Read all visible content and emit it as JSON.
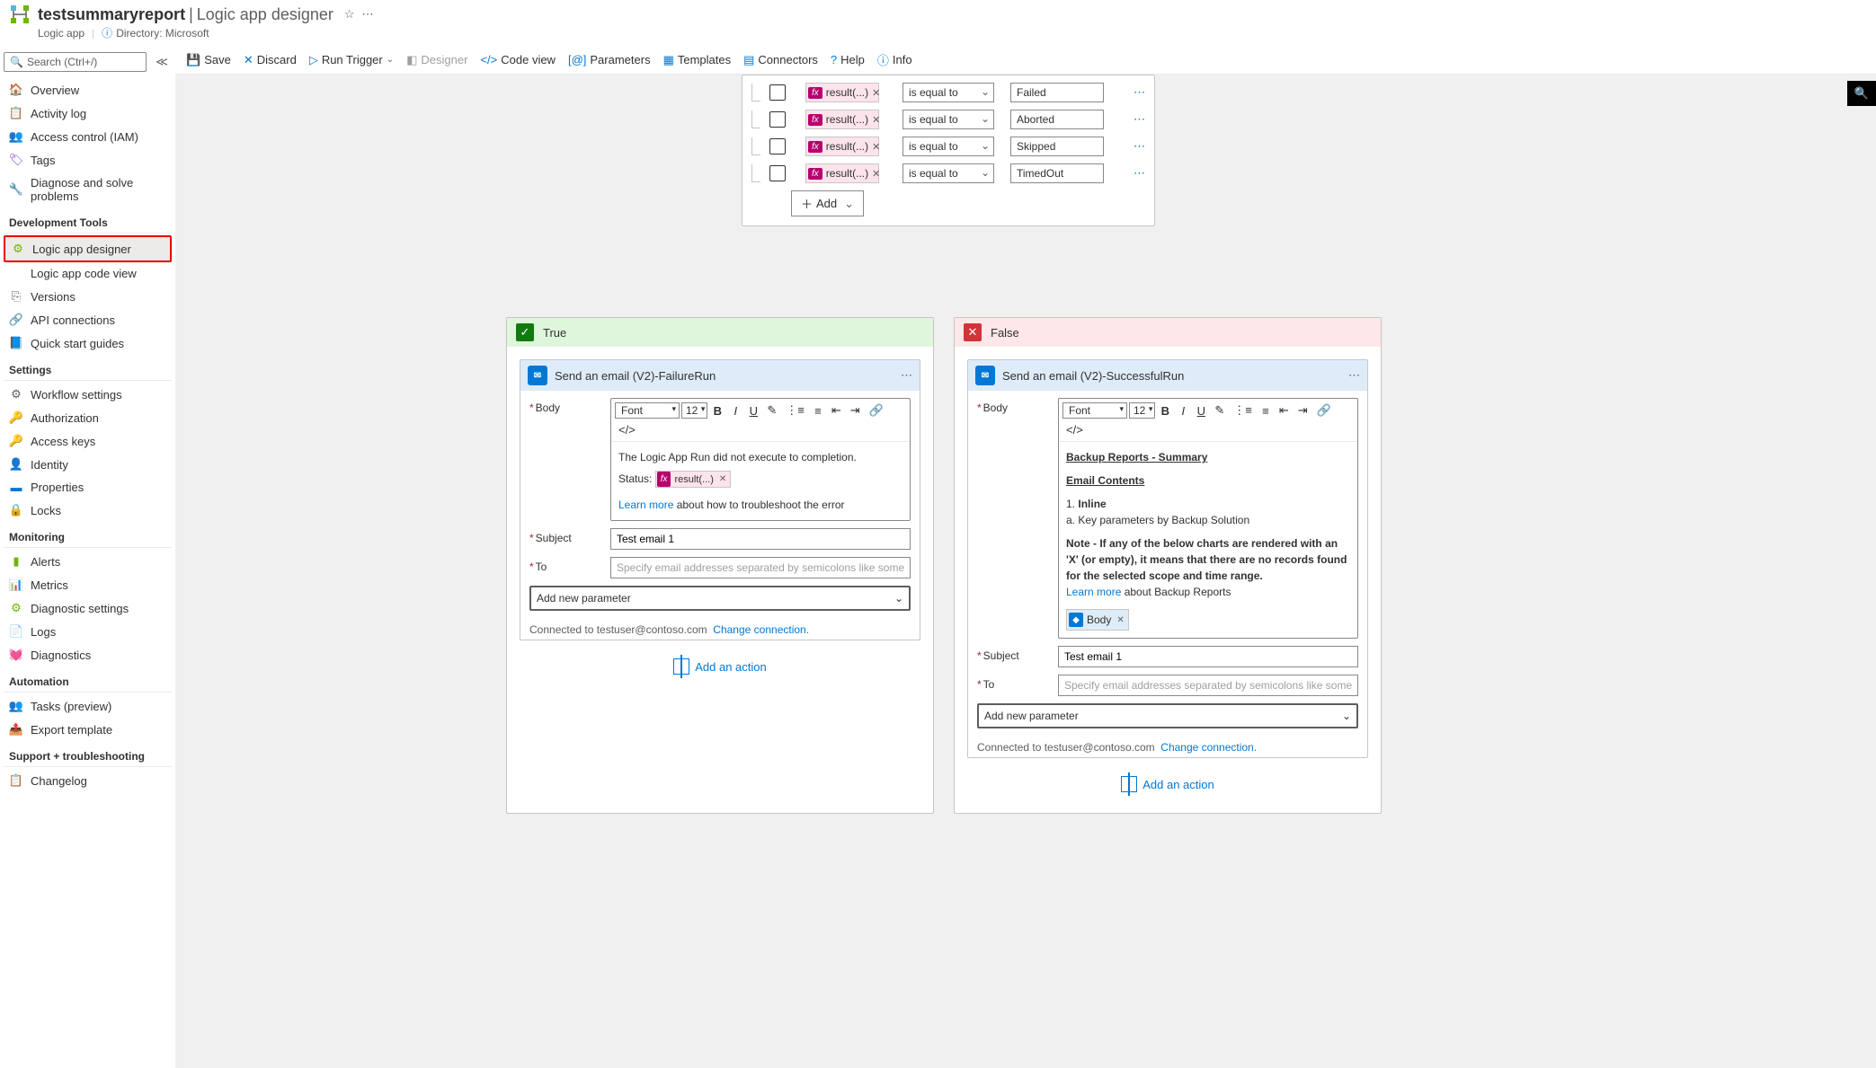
{
  "header": {
    "title": "testsummaryreport",
    "subtitle": "Logic app designer",
    "type": "Logic app",
    "directory_label": "Directory:",
    "directory": "Microsoft"
  },
  "sidebar": {
    "search_placeholder": "Search (Ctrl+/)",
    "items_top": [
      {
        "icon": "🏠",
        "color": "#6bb700",
        "label": "Overview"
      },
      {
        "icon": "📋",
        "color": "#605e5c",
        "label": "Activity log"
      },
      {
        "icon": "👥",
        "color": "#0078d4",
        "label": "Access control (IAM)"
      },
      {
        "icon": "🏷",
        "color": "#773adc",
        "label": "Tags"
      },
      {
        "icon": "🔧",
        "color": "#605e5c",
        "label": "Diagnose and solve problems"
      }
    ],
    "section_dev": "Development Tools",
    "items_dev": [
      {
        "icon": "⚙",
        "color": "#6bb700",
        "label": "Logic app designer",
        "selected": true
      },
      {
        "icon": "</>",
        "color": "#605e5c",
        "label": "Logic app code view"
      },
      {
        "icon": "⎘",
        "color": "#605e5c",
        "label": "Versions"
      },
      {
        "icon": "🔗",
        "color": "#6bb700",
        "label": "API connections"
      },
      {
        "icon": "📘",
        "color": "#0078d4",
        "label": "Quick start guides"
      }
    ],
    "section_settings": "Settings",
    "items_settings": [
      {
        "icon": "⚙",
        "color": "#605e5c",
        "label": "Workflow settings"
      },
      {
        "icon": "🔑",
        "color": "#ffb900",
        "label": "Authorization"
      },
      {
        "icon": "🔑",
        "color": "#0078d4",
        "label": "Access keys"
      },
      {
        "icon": "👤",
        "color": "#ffb900",
        "label": "Identity"
      },
      {
        "icon": "▬",
        "color": "#0078d4",
        "label": "Properties"
      },
      {
        "icon": "🔒",
        "color": "#605e5c",
        "label": "Locks"
      }
    ],
    "section_monitoring": "Monitoring",
    "items_monitoring": [
      {
        "icon": "▮",
        "color": "#6bb700",
        "label": "Alerts"
      },
      {
        "icon": "📊",
        "color": "#0078d4",
        "label": "Metrics"
      },
      {
        "icon": "⚙",
        "color": "#6bb700",
        "label": "Diagnostic settings"
      },
      {
        "icon": "📄",
        "color": "#0078d4",
        "label": "Logs"
      },
      {
        "icon": "💓",
        "color": "#d13438",
        "label": "Diagnostics"
      }
    ],
    "section_automation": "Automation",
    "items_automation": [
      {
        "icon": "👥",
        "color": "#6bb700",
        "label": "Tasks (preview)"
      },
      {
        "icon": "📤",
        "color": "#0078d4",
        "label": "Export template"
      }
    ],
    "section_support": "Support + troubleshooting",
    "items_support": [
      {
        "icon": "📋",
        "color": "#0078d4",
        "label": "Changelog"
      }
    ]
  },
  "toolbar": {
    "save": "Save",
    "discard": "Discard",
    "run": "Run Trigger",
    "designer": "Designer",
    "code": "Code view",
    "params": "Parameters",
    "templates": "Templates",
    "connectors": "Connectors",
    "help": "Help",
    "info": "Info"
  },
  "condition": {
    "token": "result(...)",
    "op": "is equal to",
    "values": [
      "Failed",
      "Aborted",
      "Skipped",
      "TimedOut"
    ],
    "add": "Add"
  },
  "true_branch": {
    "label": "True",
    "action_title": "Send an email (V2)-FailureRun",
    "body_label": "Body",
    "body_text": "The Logic App Run did not execute to completion.",
    "status_label": "Status:",
    "status_token": "result(...)",
    "learn_more": "Learn more",
    "learn_more_after": " about how to troubleshoot the error",
    "subject_label": "Subject",
    "subject_value": "Test email 1",
    "to_label": "To",
    "to_placeholder": "Specify email addresses separated by semicolons like someone@contoso.com",
    "add_param": "Add new parameter",
    "connected": "Connected to testuser@contoso.com",
    "change_conn": "Change connection.",
    "add_action": "Add an action"
  },
  "false_branch": {
    "label": "False",
    "action_title": "Send an email (V2)-SuccessfulRun",
    "body_label": "Body",
    "h1": "Backup Reports - Summary",
    "h2": "Email Contents",
    "l1": "1.",
    "l1b": "Inline",
    "l2": "a. Key parameters by Backup Solution",
    "note_label": "Note - ",
    "note": "If any of the below charts are rendered with an 'X' (or empty), it means that there are no records found for the selected scope and time range.",
    "learn_more": "Learn more",
    "learn_more_after": " about Backup Reports",
    "body_token": "Body",
    "subject_label": "Subject",
    "subject_value": "Test email 1",
    "to_label": "To",
    "to_placeholder": "Specify email addresses separated by semicolons like someone@contoso.com",
    "add_param": "Add new parameter",
    "connected": "Connected to testuser@contoso.com",
    "change_conn": "Change connection.",
    "add_action": "Add an action"
  },
  "rte": {
    "font": "Font",
    "size": "12"
  }
}
